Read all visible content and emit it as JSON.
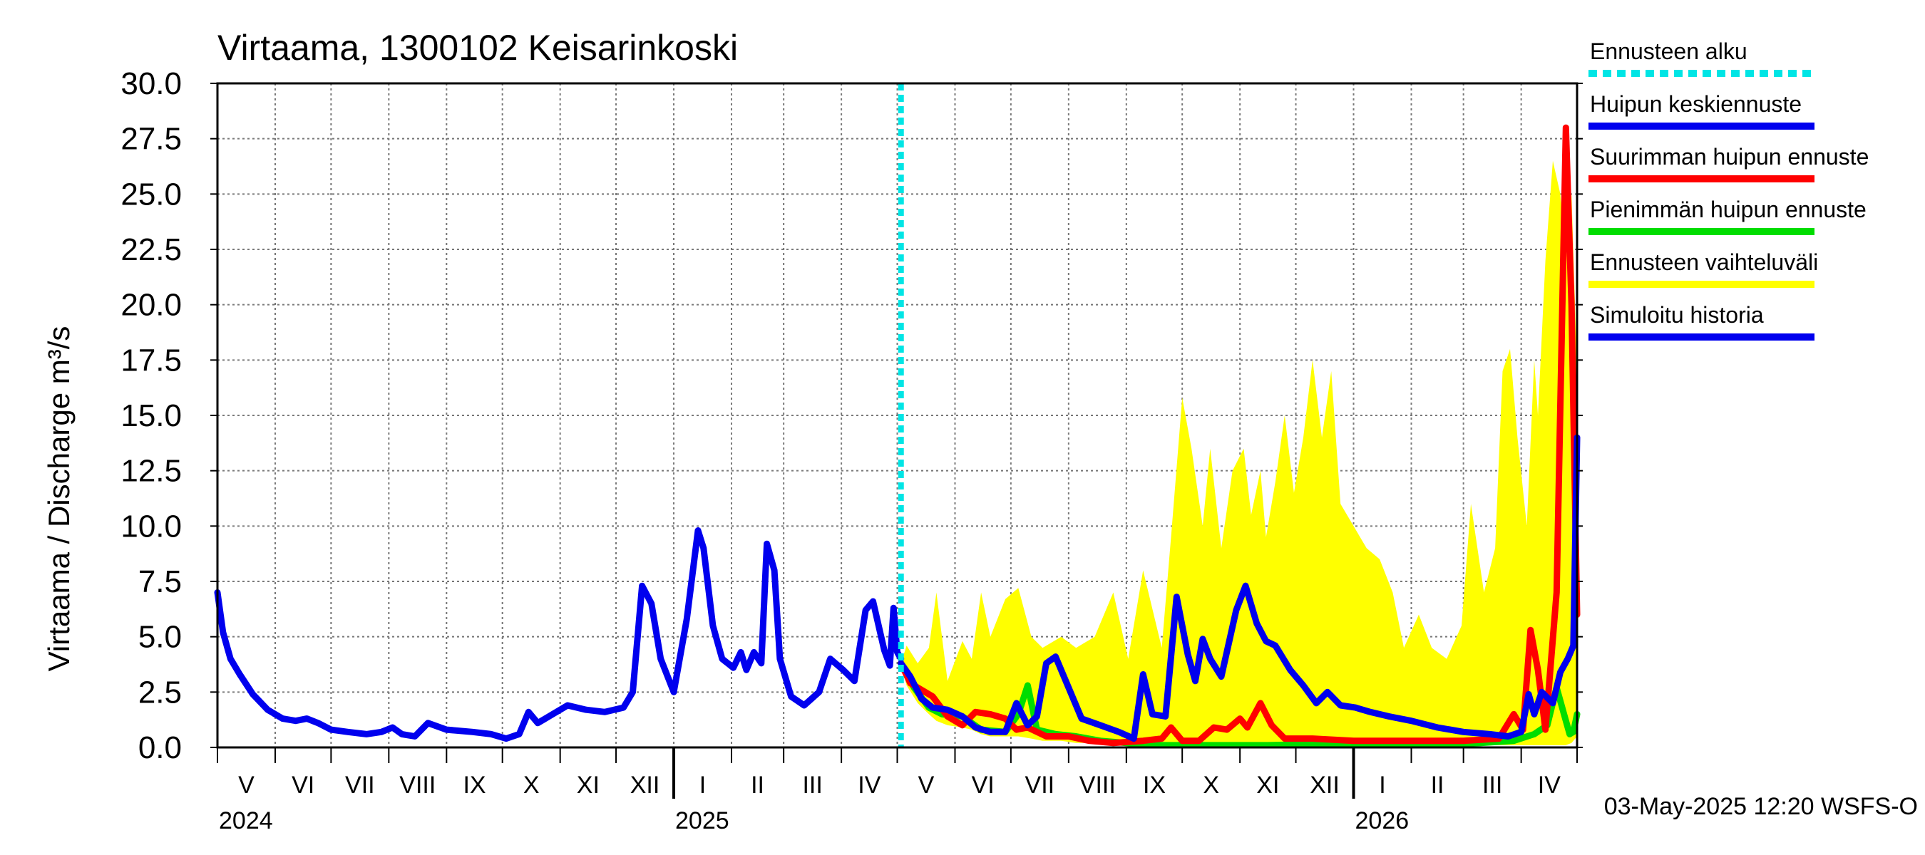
{
  "chart_data": {
    "type": "line",
    "title": "Virtaama, 1300102 Keisarinkoski",
    "ylabel": "Virtaama / Discharge    m³/s",
    "ylim": [
      0,
      30
    ],
    "yticks": [
      "0.0",
      "2.5",
      "5.0",
      "7.5",
      "10.0",
      "12.5",
      "15.0",
      "17.5",
      "20.0",
      "22.5",
      "25.0",
      "27.5",
      "30.0"
    ],
    "grid": true,
    "legend_placement": "right",
    "x_range": [
      "2024-05-01",
      "2026-05-01"
    ],
    "forecast_start": "2025-05-03",
    "month_labels": [
      "V",
      "VI",
      "VII",
      "VIII",
      "IX",
      "X",
      "XI",
      "XII",
      "I",
      "II",
      "III",
      "IV",
      "V",
      "VI",
      "VII",
      "VIII",
      "IX",
      "X",
      "XI",
      "XII",
      "I",
      "II",
      "III",
      "IV"
    ],
    "year_labels": [
      {
        "label": "2024",
        "date": "2024-05-01"
      },
      {
        "label": "2025",
        "date": "2025-01-01"
      },
      {
        "label": "2026",
        "date": "2026-01-01"
      }
    ],
    "colors": {
      "forecast_start": "#00e5e5",
      "mean_peak": "#0000ee",
      "max_peak": "#ff0000",
      "min_peak": "#00dd00",
      "range": "#ffff00",
      "history": "#0000ee"
    },
    "legend": [
      {
        "key": "forecast_start",
        "label": "Ennusteen alku",
        "style": "dashed"
      },
      {
        "key": "mean_peak",
        "label": "Huipun keskiennuste",
        "style": "solid"
      },
      {
        "key": "max_peak",
        "label": "Suurimman huipun ennuste",
        "style": "solid"
      },
      {
        "key": "min_peak",
        "label": "Pienimmän huipun ennuste",
        "style": "solid"
      },
      {
        "key": "range",
        "label": "Ennusteen vaihteluväli",
        "style": "solid"
      },
      {
        "key": "history",
        "label": "Simuloitu historia",
        "style": "solid"
      }
    ],
    "series": [
      {
        "name": "Simuloitu historia",
        "key": "history",
        "points": [
          [
            "2024-05-01",
            7.0
          ],
          [
            "2024-05-04",
            5.2
          ],
          [
            "2024-05-08",
            4.0
          ],
          [
            "2024-05-13",
            3.3
          ],
          [
            "2024-05-20",
            2.4
          ],
          [
            "2024-05-28",
            1.7
          ],
          [
            "2024-06-05",
            1.3
          ],
          [
            "2024-06-12",
            1.2
          ],
          [
            "2024-06-18",
            1.3
          ],
          [
            "2024-06-24",
            1.1
          ],
          [
            "2024-07-01",
            0.8
          ],
          [
            "2024-07-10",
            0.7
          ],
          [
            "2024-07-20",
            0.6
          ],
          [
            "2024-07-28",
            0.7
          ],
          [
            "2024-08-03",
            0.9
          ],
          [
            "2024-08-08",
            0.6
          ],
          [
            "2024-08-15",
            0.5
          ],
          [
            "2024-08-22",
            1.1
          ],
          [
            "2024-09-01",
            0.8
          ],
          [
            "2024-09-15",
            0.7
          ],
          [
            "2024-09-25",
            0.6
          ],
          [
            "2024-10-03",
            0.4
          ],
          [
            "2024-10-10",
            0.6
          ],
          [
            "2024-10-15",
            1.6
          ],
          [
            "2024-10-20",
            1.1
          ],
          [
            "2024-10-28",
            1.5
          ],
          [
            "2024-11-05",
            1.9
          ],
          [
            "2024-11-15",
            1.7
          ],
          [
            "2024-11-25",
            1.6
          ],
          [
            "2024-12-05",
            1.8
          ],
          [
            "2024-12-10",
            2.5
          ],
          [
            "2024-12-15",
            7.3
          ],
          [
            "2024-12-20",
            6.5
          ],
          [
            "2024-12-25",
            4.0
          ],
          [
            "2025-01-01",
            2.5
          ],
          [
            "2025-01-08",
            5.8
          ],
          [
            "2025-01-14",
            9.8
          ],
          [
            "2025-01-17",
            9.0
          ],
          [
            "2025-01-22",
            5.5
          ],
          [
            "2025-01-27",
            4.0
          ],
          [
            "2025-02-02",
            3.6
          ],
          [
            "2025-02-06",
            4.3
          ],
          [
            "2025-02-09",
            3.5
          ],
          [
            "2025-02-13",
            4.3
          ],
          [
            "2025-02-17",
            3.8
          ],
          [
            "2025-02-20",
            9.2
          ],
          [
            "2025-02-24",
            8.0
          ],
          [
            "2025-02-27",
            4.0
          ],
          [
            "2025-03-05",
            2.3
          ],
          [
            "2025-03-12",
            1.9
          ],
          [
            "2025-03-20",
            2.5
          ],
          [
            "2025-03-26",
            4.0
          ],
          [
            "2025-04-02",
            3.5
          ],
          [
            "2025-04-08",
            3.0
          ],
          [
            "2025-04-14",
            6.2
          ],
          [
            "2025-04-18",
            6.6
          ],
          [
            "2025-04-24",
            4.4
          ],
          [
            "2025-04-27",
            3.7
          ],
          [
            "2025-04-29",
            6.3
          ],
          [
            "2025-05-01",
            4.3
          ],
          [
            "2025-05-03",
            4.0
          ]
        ]
      },
      {
        "name": "Huipun keskiennuste",
        "key": "mean_peak",
        "points": [
          [
            "2025-05-03",
            3.8
          ],
          [
            "2025-05-08",
            3.2
          ],
          [
            "2025-05-14",
            2.2
          ],
          [
            "2025-05-20",
            1.8
          ],
          [
            "2025-05-28",
            1.7
          ],
          [
            "2025-06-05",
            1.4
          ],
          [
            "2025-06-12",
            0.9
          ],
          [
            "2025-06-20",
            0.7
          ],
          [
            "2025-06-28",
            0.7
          ],
          [
            "2025-07-04",
            2.0
          ],
          [
            "2025-07-10",
            1.0
          ],
          [
            "2025-07-15",
            1.4
          ],
          [
            "2025-07-20",
            3.8
          ],
          [
            "2025-07-25",
            4.1
          ],
          [
            "2025-08-02",
            2.5
          ],
          [
            "2025-08-08",
            1.3
          ],
          [
            "2025-08-18",
            1.0
          ],
          [
            "2025-08-28",
            0.7
          ],
          [
            "2025-09-05",
            0.4
          ],
          [
            "2025-09-10",
            3.3
          ],
          [
            "2025-09-15",
            1.5
          ],
          [
            "2025-09-22",
            1.4
          ],
          [
            "2025-09-28",
            6.8
          ],
          [
            "2025-10-04",
            4.2
          ],
          [
            "2025-10-08",
            3.0
          ],
          [
            "2025-10-12",
            4.9
          ],
          [
            "2025-10-16",
            4.0
          ],
          [
            "2025-10-22",
            3.2
          ],
          [
            "2025-10-30",
            6.2
          ],
          [
            "2025-11-04",
            7.3
          ],
          [
            "2025-11-10",
            5.6
          ],
          [
            "2025-11-15",
            4.8
          ],
          [
            "2025-11-20",
            4.6
          ],
          [
            "2025-11-28",
            3.5
          ],
          [
            "2025-12-05",
            2.8
          ],
          [
            "2025-12-12",
            2.0
          ],
          [
            "2025-12-18",
            2.5
          ],
          [
            "2025-12-25",
            1.9
          ],
          [
            "2026-01-02",
            1.8
          ],
          [
            "2026-01-10",
            1.6
          ],
          [
            "2026-01-20",
            1.4
          ],
          [
            "2026-02-01",
            1.2
          ],
          [
            "2026-02-15",
            0.9
          ],
          [
            "2026-03-01",
            0.7
          ],
          [
            "2026-03-15",
            0.6
          ],
          [
            "2026-03-25",
            0.5
          ],
          [
            "2026-04-01",
            0.7
          ],
          [
            "2026-04-05",
            2.4
          ],
          [
            "2026-04-08",
            1.5
          ],
          [
            "2026-04-12",
            2.5
          ],
          [
            "2026-04-18",
            2.0
          ],
          [
            "2026-04-22",
            3.4
          ],
          [
            "2026-04-26",
            4.0
          ],
          [
            "2026-04-29",
            4.6
          ],
          [
            "2026-05-01",
            14.0
          ]
        ]
      },
      {
        "name": "Suurimman huipun ennuste",
        "key": "max_peak",
        "points": [
          [
            "2025-05-03",
            3.8
          ],
          [
            "2025-05-08",
            2.9
          ],
          [
            "2025-05-14",
            2.6
          ],
          [
            "2025-05-20",
            2.3
          ],
          [
            "2025-05-28",
            1.4
          ],
          [
            "2025-06-05",
            1.0
          ],
          [
            "2025-06-12",
            1.6
          ],
          [
            "2025-06-20",
            1.5
          ],
          [
            "2025-06-28",
            1.3
          ],
          [
            "2025-07-04",
            0.8
          ],
          [
            "2025-07-10",
            0.9
          ],
          [
            "2025-07-20",
            0.5
          ],
          [
            "2025-08-01",
            0.5
          ],
          [
            "2025-08-12",
            0.3
          ],
          [
            "2025-08-25",
            0.2
          ],
          [
            "2025-09-10",
            0.3
          ],
          [
            "2025-09-20",
            0.4
          ],
          [
            "2025-09-25",
            0.9
          ],
          [
            "2025-10-01",
            0.3
          ],
          [
            "2025-10-10",
            0.3
          ],
          [
            "2025-10-18",
            0.9
          ],
          [
            "2025-10-25",
            0.8
          ],
          [
            "2025-11-01",
            1.3
          ],
          [
            "2025-11-05",
            0.9
          ],
          [
            "2025-11-12",
            2.0
          ],
          [
            "2025-11-18",
            1.0
          ],
          [
            "2025-11-25",
            0.4
          ],
          [
            "2025-12-10",
            0.4
          ],
          [
            "2026-01-01",
            0.3
          ],
          [
            "2026-02-01",
            0.3
          ],
          [
            "2026-03-01",
            0.3
          ],
          [
            "2026-03-20",
            0.4
          ],
          [
            "2026-03-28",
            1.5
          ],
          [
            "2026-04-02",
            0.8
          ],
          [
            "2026-04-06",
            5.3
          ],
          [
            "2026-04-10",
            3.5
          ],
          [
            "2026-04-14",
            0.8
          ],
          [
            "2026-04-20",
            7.0
          ],
          [
            "2026-04-25",
            28.0
          ],
          [
            "2026-04-28",
            20.0
          ],
          [
            "2026-05-01",
            6.0
          ]
        ]
      },
      {
        "name": "Pienimmän huipun ennuste",
        "key": "min_peak",
        "points": [
          [
            "2025-05-03",
            3.8
          ],
          [
            "2025-05-10",
            2.7
          ],
          [
            "2025-05-18",
            1.8
          ],
          [
            "2025-05-25",
            1.5
          ],
          [
            "2025-06-05",
            1.4
          ],
          [
            "2025-06-15",
            0.8
          ],
          [
            "2025-06-28",
            0.7
          ],
          [
            "2025-07-05",
            1.5
          ],
          [
            "2025-07-10",
            2.8
          ],
          [
            "2025-07-15",
            0.8
          ],
          [
            "2025-07-25",
            0.6
          ],
          [
            "2025-08-05",
            0.5
          ],
          [
            "2025-08-18",
            0.3
          ],
          [
            "2025-09-01",
            0.2
          ],
          [
            "2025-09-20",
            0.1
          ],
          [
            "2025-10-15",
            0.1
          ],
          [
            "2025-11-15",
            0.1
          ],
          [
            "2025-12-15",
            0.15
          ],
          [
            "2026-01-15",
            0.15
          ],
          [
            "2026-02-15",
            0.15
          ],
          [
            "2026-03-10",
            0.2
          ],
          [
            "2026-03-28",
            0.3
          ],
          [
            "2026-04-08",
            0.6
          ],
          [
            "2026-04-15",
            1.0
          ],
          [
            "2026-04-20",
            2.7
          ],
          [
            "2026-04-24",
            1.5
          ],
          [
            "2026-04-27",
            0.6
          ],
          [
            "2026-04-29",
            0.7
          ],
          [
            "2026-05-01",
            1.5
          ]
        ]
      }
    ],
    "range_band": [
      [
        "2025-05-03",
        3.8,
        3.8
      ],
      [
        "2025-05-06",
        4.6,
        2.8
      ],
      [
        "2025-05-12",
        3.8,
        2.0
      ],
      [
        "2025-05-18",
        4.5,
        1.5
      ],
      [
        "2025-05-22",
        7.0,
        1.2
      ],
      [
        "2025-05-28",
        3.0,
        1.0
      ],
      [
        "2025-06-05",
        4.8,
        0.9
      ],
      [
        "2025-06-10",
        4.0,
        0.8
      ],
      [
        "2025-06-15",
        7.0,
        0.6
      ],
      [
        "2025-06-20",
        5.0,
        0.5
      ],
      [
        "2025-06-28",
        6.7,
        0.5
      ],
      [
        "2025-07-05",
        7.2,
        0.5
      ],
      [
        "2025-07-12",
        5.0,
        0.4
      ],
      [
        "2025-07-18",
        4.5,
        0.3
      ],
      [
        "2025-07-28",
        5.0,
        0.3
      ],
      [
        "2025-08-05",
        4.5,
        0.2
      ],
      [
        "2025-08-15",
        5.0,
        0.2
      ],
      [
        "2025-08-25",
        7.0,
        0.1
      ],
      [
        "2025-09-02",
        4.0,
        0.1
      ],
      [
        "2025-09-10",
        8.0,
        0.1
      ],
      [
        "2025-09-20",
        4.5,
        0.1
      ],
      [
        "2025-09-25",
        9.5,
        0.1
      ],
      [
        "2025-10-01",
        15.8,
        0.1
      ],
      [
        "2025-10-06",
        13.5,
        0.1
      ],
      [
        "2025-10-12",
        10.0,
        0.1
      ],
      [
        "2025-10-16",
        13.5,
        0.1
      ],
      [
        "2025-10-22",
        9.0,
        0.1
      ],
      [
        "2025-10-28",
        12.5,
        0.1
      ],
      [
        "2025-11-03",
        13.5,
        0.1
      ],
      [
        "2025-11-07",
        10.5,
        0.1
      ],
      [
        "2025-11-12",
        12.5,
        0.1
      ],
      [
        "2025-11-15",
        9.5,
        0.1
      ],
      [
        "2025-11-20",
        12.0,
        0.1
      ],
      [
        "2025-11-25",
        15.0,
        0.1
      ],
      [
        "2025-11-30",
        11.5,
        0.1
      ],
      [
        "2025-12-05",
        14.0,
        0.1
      ],
      [
        "2025-12-10",
        17.5,
        0.1
      ],
      [
        "2025-12-15",
        14.0,
        0.1
      ],
      [
        "2025-12-20",
        17.0,
        0.1
      ],
      [
        "2025-12-25",
        11.0,
        0.1
      ],
      [
        "2026-01-01",
        10.0,
        0.1
      ],
      [
        "2026-01-08",
        9.0,
        0.1
      ],
      [
        "2026-01-15",
        8.5,
        0.1
      ],
      [
        "2026-01-22",
        7.0,
        0.1
      ],
      [
        "2026-01-28",
        4.5,
        0.1
      ],
      [
        "2026-02-05",
        6.0,
        0.1
      ],
      [
        "2026-02-12",
        4.5,
        0.1
      ],
      [
        "2026-02-20",
        4.0,
        0.1
      ],
      [
        "2026-02-28",
        5.5,
        0.1
      ],
      [
        "2026-03-05",
        11.0,
        0.1
      ],
      [
        "2026-03-12",
        7.0,
        0.1
      ],
      [
        "2026-03-18",
        9.0,
        0.1
      ],
      [
        "2026-03-22",
        17.0,
        0.1
      ],
      [
        "2026-03-26",
        18.0,
        0.1
      ],
      [
        "2026-03-30",
        14.0,
        0.1
      ],
      [
        "2026-04-04",
        10.0,
        0.1
      ],
      [
        "2026-04-08",
        17.5,
        0.1
      ],
      [
        "2026-04-10",
        15.0,
        0.1
      ],
      [
        "2026-04-14",
        22.0,
        0.1
      ],
      [
        "2026-04-18",
        26.5,
        0.1
      ],
      [
        "2026-04-22",
        25.0,
        0.1
      ],
      [
        "2026-04-25",
        22.0,
        0.1
      ],
      [
        "2026-04-28",
        25.0,
        0.2
      ],
      [
        "2026-05-01",
        17.0,
        0.5
      ]
    ]
  },
  "footer": {
    "timestamp": "03-May-2025 12:20 WSFS-O"
  }
}
